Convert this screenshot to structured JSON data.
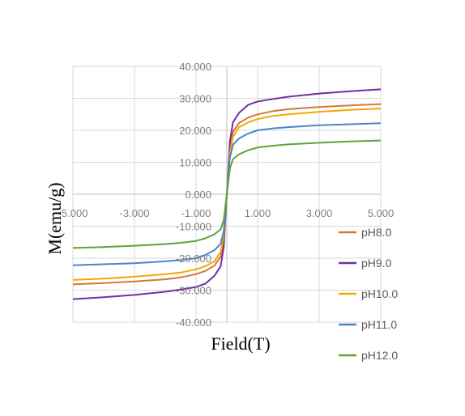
{
  "chart_data": {
    "type": "line",
    "title": "",
    "xlabel": "Field(T)",
    "ylabel": "M(emu/g)",
    "xlim": [
      -5,
      5
    ],
    "ylim": [
      -40,
      40
    ],
    "x_ticks": [
      -5,
      -3,
      -1,
      1,
      3,
      5
    ],
    "y_ticks": [
      -40,
      -30,
      -20,
      -10,
      0,
      10,
      20,
      30,
      40
    ],
    "x_tick_labels": [
      "-5.000",
      "-3.000",
      "-1.000",
      "1.000",
      "3.000",
      "5.000"
    ],
    "y_tick_labels": [
      "-40.000",
      "-30.000",
      "-20.000",
      "-10.000",
      "0.000",
      "10.000",
      "20.000",
      "30.000",
      "40.000"
    ],
    "grid": true,
    "legend": "right",
    "x": [
      -5,
      -4,
      -3,
      -2,
      -1.5,
      -1,
      -0.7,
      -0.4,
      -0.2,
      -0.1,
      0,
      0.1,
      0.2,
      0.4,
      0.7,
      1,
      1.5,
      2,
      3,
      4,
      5
    ],
    "series": [
      {
        "name": "pH8.0",
        "color": "#d6773a",
        "values": [
          -28.2,
          -27.8,
          -27.3,
          -26.6,
          -26.0,
          -25.0,
          -24.0,
          -22.3,
          -19.5,
          -14.0,
          0,
          14.0,
          19.5,
          22.3,
          24.0,
          25.0,
          26.0,
          26.6,
          27.3,
          27.8,
          28.2
        ]
      },
      {
        "name": "pH9.0",
        "color": "#7030a0",
        "values": [
          -32.8,
          -32.2,
          -31.5,
          -30.5,
          -29.8,
          -29.0,
          -28.0,
          -25.5,
          -22.5,
          -16.5,
          0,
          16.5,
          22.5,
          25.5,
          28.0,
          29.0,
          29.8,
          30.5,
          31.5,
          32.2,
          32.8
        ]
      },
      {
        "name": "pH10.0",
        "color": "#f2a900",
        "values": [
          -26.8,
          -26.4,
          -25.8,
          -25.0,
          -24.5,
          -23.5,
          -22.5,
          -21.0,
          -18.0,
          -13.0,
          0,
          13.0,
          18.0,
          21.0,
          22.5,
          23.5,
          24.5,
          25.0,
          25.8,
          26.4,
          26.8
        ]
      },
      {
        "name": "pH11.0",
        "color": "#4a86c5",
        "values": [
          -22.2,
          -21.9,
          -21.6,
          -21.0,
          -20.6,
          -20.0,
          -19.0,
          -17.5,
          -15.5,
          -11.5,
          0,
          11.5,
          15.5,
          17.5,
          19.0,
          20.0,
          20.6,
          21.0,
          21.6,
          21.9,
          22.2
        ]
      },
      {
        "name": "pH12.0",
        "color": "#5ea33a",
        "values": [
          -16.8,
          -16.5,
          -16.1,
          -15.6,
          -15.2,
          -14.6,
          -13.8,
          -12.5,
          -11.0,
          -8.0,
          0,
          8.0,
          11.0,
          12.5,
          13.8,
          14.6,
          15.2,
          15.6,
          16.1,
          16.5,
          16.8
        ]
      }
    ]
  }
}
